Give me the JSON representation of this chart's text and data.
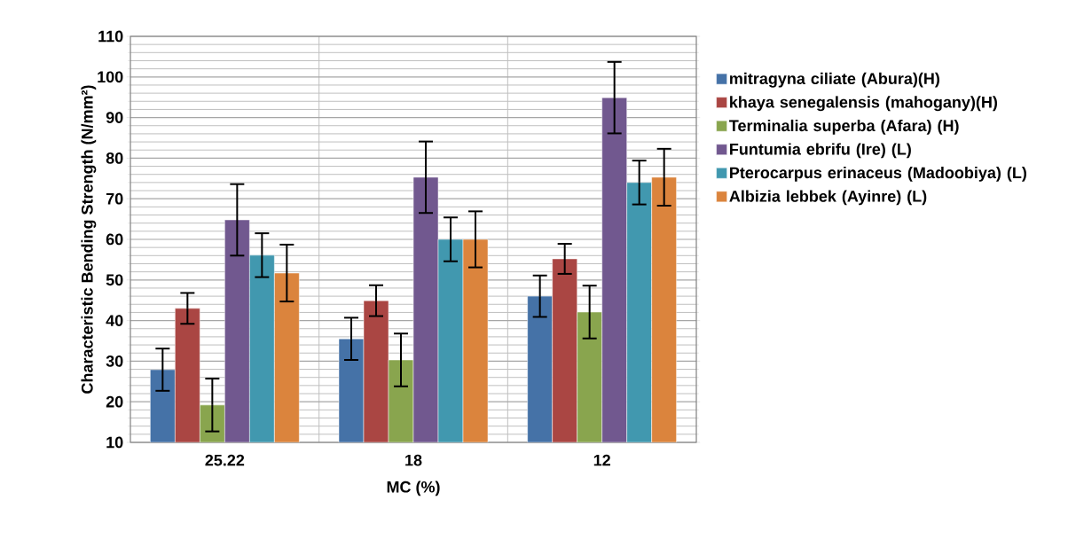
{
  "chart_data": {
    "type": "bar",
    "xlabel": "MC (%)",
    "ylabel": "Characteristic Bending Strength (N/mm²)",
    "categories": [
      "25.22",
      "18",
      "12"
    ],
    "series": [
      {
        "name": "mitragyna ciliate (Abura)(H)",
        "color": "#4572a7",
        "values": [
          27.9,
          35.5,
          46.0
        ],
        "errors": [
          5.2,
          5.2,
          5.1
        ]
      },
      {
        "name": "khaya senegalensis (mahogany)(H)",
        "color": "#aa4643",
        "values": [
          43.0,
          44.9,
          55.2
        ],
        "errors": [
          3.8,
          3.8,
          3.7
        ]
      },
      {
        "name": "Terminalia superba (Afara) (H)",
        "color": "#89a54e",
        "values": [
          19.2,
          30.3,
          42.1
        ],
        "errors": [
          6.5,
          6.5,
          6.5
        ]
      },
      {
        "name": "Funtumia ebrifu (Ire) (L)",
        "color": "#71588f",
        "values": [
          64.8,
          75.3,
          94.9
        ],
        "errors": [
          8.8,
          8.8,
          8.8
        ]
      },
      {
        "name": "Pterocarpus erinaceus (Madoobiya) (L)",
        "color": "#4198af",
        "values": [
          56.1,
          60.0,
          74.0
        ],
        "errors": [
          5.4,
          5.4,
          5.4
        ]
      },
      {
        "name": "Albizia lebbek (Ayinre) (L)",
        "color": "#db843d",
        "values": [
          51.7,
          60.0,
          75.3
        ],
        "errors": [
          7.0,
          6.9,
          7.0
        ]
      }
    ],
    "ylim": [
      10,
      110
    ],
    "yticks": [
      10,
      20,
      30,
      40,
      50,
      60,
      70,
      80,
      90,
      100,
      110
    ],
    "grid": true,
    "legend": "right"
  }
}
